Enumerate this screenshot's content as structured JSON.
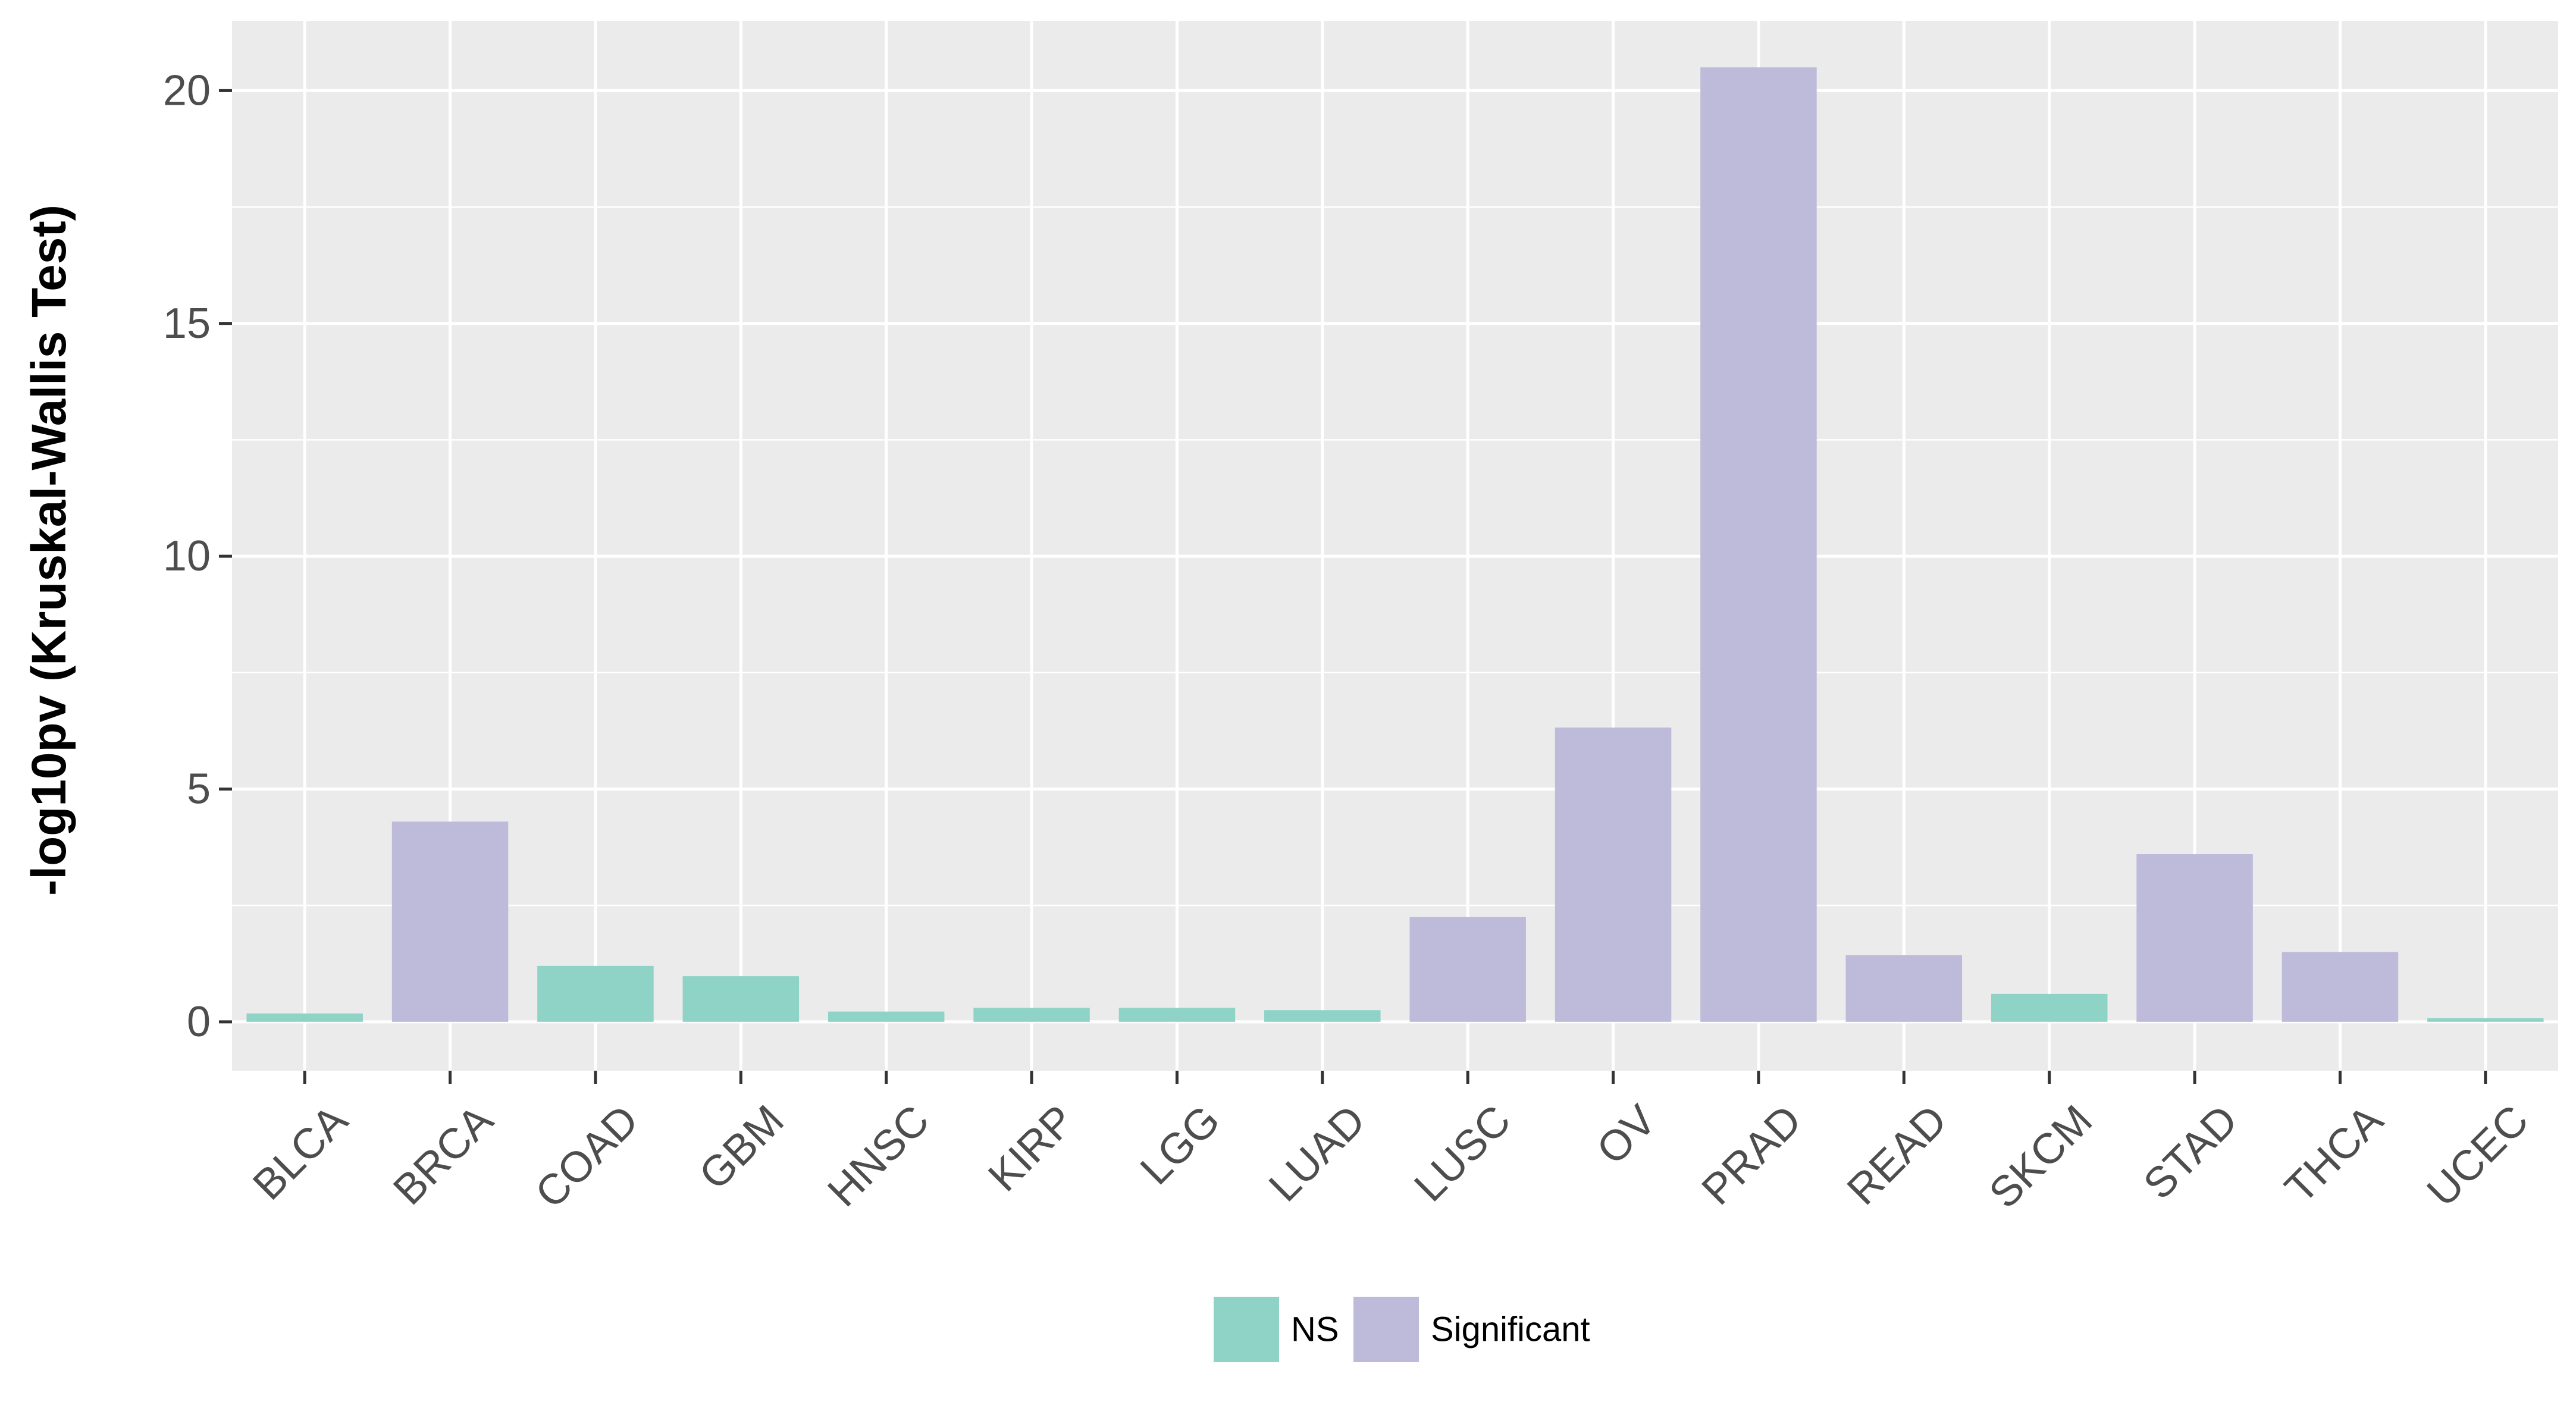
{
  "chart_data": {
    "type": "bar",
    "title": "",
    "xlabel": "",
    "ylabel": "-log10pv (Kruskal-Wallis Test)",
    "ylim": [
      -1.05,
      21.5
    ],
    "yticks": [
      0,
      5,
      10,
      15,
      20
    ],
    "grid": true,
    "legend_position": "bottom",
    "categories": [
      "BLCA",
      "BRCA",
      "COAD",
      "GBM",
      "HNSC",
      "KIRP",
      "LGG",
      "LUAD",
      "LUSC",
      "OV",
      "PRAD",
      "READ",
      "SKCM",
      "STAD",
      "THCA",
      "UCEC"
    ],
    "values": [
      0.18,
      4.3,
      1.2,
      0.98,
      0.22,
      0.3,
      0.3,
      0.25,
      2.25,
      6.32,
      20.5,
      1.43,
      0.6,
      3.6,
      1.5,
      0.08
    ],
    "groups": [
      "NS",
      "Significant",
      "NS",
      "NS",
      "NS",
      "NS",
      "NS",
      "NS",
      "Significant",
      "Significant",
      "Significant",
      "Significant",
      "NS",
      "Significant",
      "Significant",
      "NS"
    ],
    "legend": [
      {
        "name": "NS",
        "color": "#8fd3c7"
      },
      {
        "name": "Significant",
        "color": "#bebada"
      }
    ],
    "colors": {
      "panel_background": "#ebebeb",
      "gridline": "#ffffff",
      "tick_text": "#4d4d4d"
    }
  }
}
